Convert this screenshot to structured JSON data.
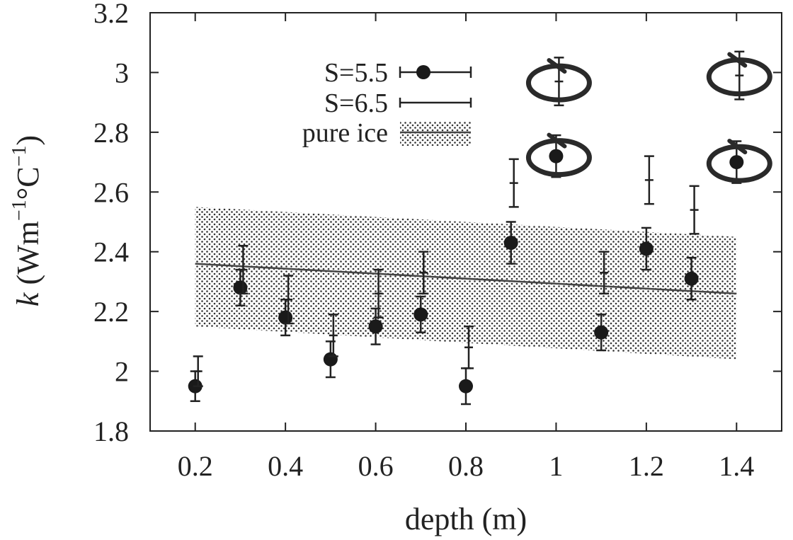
{
  "chart_data": {
    "type": "scatter",
    "title": "",
    "xlabel": "depth (m)",
    "ylabel_parts": [
      "k",
      " (Wm",
      "−1",
      "°C",
      "−1",
      ")"
    ],
    "xlim": [
      0.1,
      1.5
    ],
    "ylim": [
      1.8,
      3.2
    ],
    "xticks": [
      0.2,
      0.4,
      0.6,
      0.8,
      1,
      1.2,
      1.4
    ],
    "xtick_labels": [
      "0.2",
      "0.4",
      "0.6",
      "0.8",
      "1",
      "1.2",
      "1.4"
    ],
    "yticks": [
      1.8,
      2.0,
      2.2,
      2.4,
      2.6,
      2.8,
      3.0,
      3.2
    ],
    "ytick_labels": [
      "1.8",
      "2",
      "2.2",
      "2.4",
      "2.6",
      "2.8",
      "3",
      "3.2"
    ],
    "grid": false,
    "legend_position": "top-left",
    "series": [
      {
        "name": "S=5.5",
        "marker": "filled-circle",
        "points": [
          {
            "x": 0.2,
            "y": 1.95,
            "err": 0.05
          },
          {
            "x": 0.3,
            "y": 2.28,
            "err": 0.06
          },
          {
            "x": 0.4,
            "y": 2.18,
            "err": 0.06
          },
          {
            "x": 0.5,
            "y": 2.04,
            "err": 0.06
          },
          {
            "x": 0.6,
            "y": 2.15,
            "err": 0.06
          },
          {
            "x": 0.7,
            "y": 2.19,
            "err": 0.06
          },
          {
            "x": 0.8,
            "y": 1.95,
            "err": 0.06
          },
          {
            "x": 0.9,
            "y": 2.43,
            "err": 0.07
          },
          {
            "x": 1.0,
            "y": 2.72,
            "err": 0.07
          },
          {
            "x": 1.1,
            "y": 2.13,
            "err": 0.06
          },
          {
            "x": 1.2,
            "y": 2.41,
            "err": 0.07
          },
          {
            "x": 1.3,
            "y": 2.31,
            "err": 0.07
          },
          {
            "x": 1.4,
            "y": 2.7,
            "err": 0.07
          }
        ]
      },
      {
        "name": "S=6.5",
        "marker": "plus",
        "points": [
          {
            "x": 0.2,
            "y": 2.0,
            "err": 0.05
          },
          {
            "x": 0.3,
            "y": 2.34,
            "err": 0.08
          },
          {
            "x": 0.4,
            "y": 2.24,
            "err": 0.08
          },
          {
            "x": 0.5,
            "y": 2.12,
            "err": 0.07
          },
          {
            "x": 0.6,
            "y": 2.26,
            "err": 0.08
          },
          {
            "x": 0.7,
            "y": 2.33,
            "err": 0.07
          },
          {
            "x": 0.8,
            "y": 2.08,
            "err": 0.07
          },
          {
            "x": 0.9,
            "y": 2.63,
            "err": 0.08
          },
          {
            "x": 1.0,
            "y": 2.97,
            "err": 0.08
          },
          {
            "x": 1.1,
            "y": 2.33,
            "err": 0.07
          },
          {
            "x": 1.2,
            "y": 2.64,
            "err": 0.08
          },
          {
            "x": 1.3,
            "y": 2.54,
            "err": 0.08
          },
          {
            "x": 1.4,
            "y": 2.99,
            "err": 0.08
          }
        ]
      }
    ],
    "pure_ice": {
      "name": "pure ice",
      "x": [
        0.2,
        1.4
      ],
      "line_y": [
        2.36,
        2.26
      ],
      "band_upper": [
        2.55,
        2.45
      ],
      "band_lower": [
        2.15,
        2.04
      ]
    },
    "circled_points": [
      {
        "x": 1.0,
        "y": 2.97
      },
      {
        "x": 1.0,
        "y": 2.72
      },
      {
        "x": 1.4,
        "y": 2.99
      },
      {
        "x": 1.4,
        "y": 2.7
      }
    ]
  }
}
